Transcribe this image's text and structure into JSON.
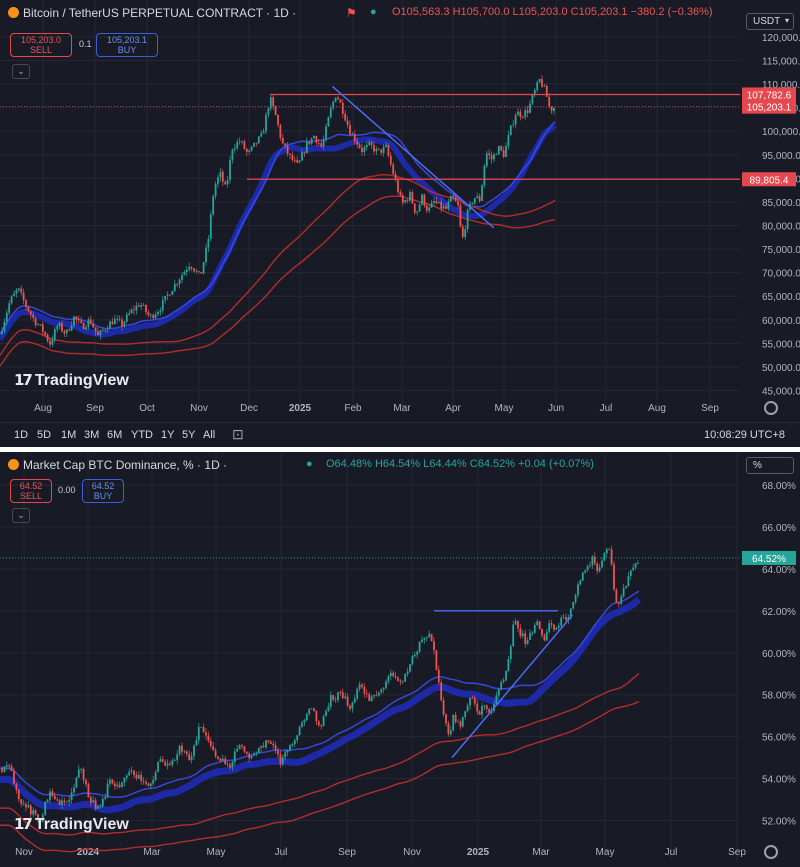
{
  "chart_data": [
    {
      "type": "candlestick",
      "title": "Bitcoin / TetherUS PERPETUAL CONTRACT · 1D ·",
      "ohlc": {
        "open": "O105,563.3",
        "high": "H105,700.0",
        "low": "L105,203.0",
        "close": "C105,203.1",
        "change": "−380.2 (−0.36%)"
      },
      "sell": {
        "value": "105,203.0",
        "label": "SELL"
      },
      "buy": {
        "value": "105,203.1",
        "label": "BUY"
      },
      "spread": "0.1",
      "currency": "USDT",
      "ylim": [
        43000,
        124000
      ],
      "y_ticks": [
        45000,
        50000,
        55000,
        60000,
        65000,
        70000,
        75000,
        80000,
        85000,
        90000,
        95000,
        100000,
        105000,
        110000,
        115000,
        120000
      ],
      "y_tick_labels": [
        "45,000.0",
        "50,000.0",
        "55,000.0",
        "60,000.0",
        "65,000.0",
        "70,000.0",
        "75,000.0",
        "80,000.0",
        "85,000.0",
        "90,000.0",
        "95,000.0",
        "100,000.0",
        "105,000.0",
        "110,000.0",
        "115,000.0",
        "120,000.0"
      ],
      "x_tick_labels": [
        "Aug",
        "Sep",
        "Oct",
        "Nov",
        "Dec",
        "2025",
        "Feb",
        "Mar",
        "Apr",
        "May",
        "Jun",
        "Jul",
        "Aug",
        "Sep"
      ],
      "price_path": [
        [
          0,
          57000
        ],
        [
          10,
          64000
        ],
        [
          18,
          66500
        ],
        [
          26,
          63000
        ],
        [
          34,
          60000
        ],
        [
          42,
          58000
        ],
        [
          50,
          55000
        ],
        [
          58,
          59000
        ],
        [
          66,
          57000
        ],
        [
          74,
          60500
        ],
        [
          82,
          58500
        ],
        [
          90,
          60000
        ],
        [
          98,
          56500
        ],
        [
          106,
          58500
        ],
        [
          114,
          60000
        ],
        [
          122,
          59000
        ],
        [
          130,
          61500
        ],
        [
          140,
          63500
        ],
        [
          150,
          60500
        ],
        [
          160,
          62500
        ],
        [
          170,
          66000
        ],
        [
          180,
          69000
        ],
        [
          190,
          72000
        ],
        [
          200,
          69000
        ],
        [
          208,
          76500
        ],
        [
          214,
          88000
        ],
        [
          220,
          91000
        ],
        [
          226,
          87500
        ],
        [
          232,
          96500
        ],
        [
          240,
          98000
        ],
        [
          248,
          95000
        ],
        [
          256,
          97500
        ],
        [
          262,
          99000
        ],
        [
          270,
          107000
        ],
        [
          276,
          103000
        ],
        [
          282,
          97500
        ],
        [
          290,
          94500
        ],
        [
          298,
          92500
        ],
        [
          306,
          97000
        ],
        [
          314,
          99000
        ],
        [
          322,
          96500
        ],
        [
          330,
          104000
        ],
        [
          336,
          108000
        ],
        [
          342,
          105000
        ],
        [
          350,
          100000
        ],
        [
          356,
          98000
        ],
        [
          362,
          96000
        ],
        [
          370,
          97000
        ],
        [
          378,
          95500
        ],
        [
          386,
          96500
        ],
        [
          394,
          90500
        ],
        [
          402,
          84500
        ],
        [
          410,
          86500
        ],
        [
          416,
          82500
        ],
        [
          422,
          86000
        ],
        [
          428,
          83000
        ],
        [
          434,
          85000
        ],
        [
          440,
          84000
        ],
        [
          446,
          83500
        ],
        [
          452,
          86000
        ],
        [
          458,
          84000
        ],
        [
          462,
          76500
        ],
        [
          468,
          83000
        ],
        [
          474,
          86000
        ],
        [
          480,
          85500
        ],
        [
          486,
          95500
        ],
        [
          492,
          94000
        ],
        [
          498,
          96500
        ],
        [
          504,
          95000
        ],
        [
          510,
          100000
        ],
        [
          516,
          104000
        ],
        [
          522,
          103500
        ],
        [
          528,
          104500
        ],
        [
          534,
          108000
        ],
        [
          540,
          111000
        ],
        [
          546,
          108000
        ],
        [
          550,
          104500
        ],
        [
          555,
          105200
        ]
      ],
      "horizontal_levels": [
        {
          "value": 107782.6,
          "label": "107,782.6"
        },
        {
          "value": 89805.4,
          "label": "89,805.4"
        }
      ],
      "last_price_label": "105,203.1",
      "trendline": {
        "from": [
          "2025-01-20",
          109500
        ],
        "to": [
          "2025-04-25",
          79500
        ]
      },
      "time_ranges": [
        "1D",
        "5D",
        "1M",
        "3M",
        "6M",
        "YTD",
        "1Y",
        "5Y",
        "All"
      ],
      "clock": "10:08:29 UTC+8",
      "watermark": "TradingView"
    },
    {
      "type": "candlestick",
      "title": "Market Cap BTC Dominance, % · 1D ·",
      "ohlc": {
        "open": "O64.48%",
        "high": "H64.54%",
        "low": "L64.44%",
        "close": "C64.52%",
        "change": "+0.04 (+0.07%)"
      },
      "sell": {
        "value": "64.52",
        "label": "SELL"
      },
      "buy": {
        "value": "64.52",
        "label": "BUY"
      },
      "spread": "0.00",
      "currency": "%",
      "ylim": [
        50.5,
        69.0
      ],
      "y_ticks": [
        52,
        54,
        56,
        58,
        60,
        62,
        64,
        66,
        68
      ],
      "y_tick_labels": [
        "52.00%",
        "54.00%",
        "56.00%",
        "58.00%",
        "60.00%",
        "62.00%",
        "64.00%",
        "66.00%",
        "68.00%"
      ],
      "x_tick_labels": [
        "Nov",
        "2024",
        "Mar",
        "May",
        "Jul",
        "Sep",
        "Nov",
        "2025",
        "Mar",
        "May",
        "Jul",
        "Sep"
      ],
      "price_path": [
        [
          10,
          54.5
        ],
        [
          20,
          53.0
        ],
        [
          30,
          52.5
        ],
        [
          40,
          52.0
        ],
        [
          50,
          53.5
        ],
        [
          60,
          52.8
        ],
        [
          70,
          53.0
        ],
        [
          80,
          54.5
        ],
        [
          90,
          53.0
        ],
        [
          100,
          52.5
        ],
        [
          110,
          54.0
        ],
        [
          120,
          53.5
        ],
        [
          130,
          54.5
        ],
        [
          140,
          54.0
        ],
        [
          150,
          53.5
        ],
        [
          160,
          55.0
        ],
        [
          170,
          54.5
        ],
        [
          180,
          55.5
        ],
        [
          190,
          54.8
        ],
        [
          200,
          56.5
        ],
        [
          210,
          55.5
        ],
        [
          220,
          55.0
        ],
        [
          230,
          54.5
        ],
        [
          240,
          55.8
        ],
        [
          250,
          55.0
        ],
        [
          260,
          55.5
        ],
        [
          270,
          55.8
        ],
        [
          280,
          54.8
        ],
        [
          290,
          55.5
        ],
        [
          300,
          56.5
        ],
        [
          310,
          57.5
        ],
        [
          320,
          56.5
        ],
        [
          330,
          57.8
        ],
        [
          340,
          58.0
        ],
        [
          350,
          57.5
        ],
        [
          360,
          58.5
        ],
        [
          370,
          57.8
        ],
        [
          380,
          58.2
        ],
        [
          390,
          59.0
        ],
        [
          400,
          58.5
        ],
        [
          410,
          59.5
        ],
        [
          420,
          60.5
        ],
        [
          430,
          61.0
        ],
        [
          436,
          59.5
        ],
        [
          442,
          57.5
        ],
        [
          448,
          56.0
        ],
        [
          454,
          57.0
        ],
        [
          460,
          56.5
        ],
        [
          466,
          57.5
        ],
        [
          472,
          58.0
        ],
        [
          478,
          57.0
        ],
        [
          484,
          57.5
        ],
        [
          490,
          57.0
        ],
        [
          496,
          58.0
        ],
        [
          502,
          58.5
        ],
        [
          508,
          59.5
        ],
        [
          514,
          61.5
        ],
        [
          520,
          61.0
        ],
        [
          526,
          60.5
        ],
        [
          532,
          61.0
        ],
        [
          538,
          61.5
        ],
        [
          544,
          60.5
        ],
        [
          550,
          61.5
        ],
        [
          556,
          61.0
        ],
        [
          562,
          61.8
        ],
        [
          568,
          61.5
        ],
        [
          574,
          62.5
        ],
        [
          580,
          63.5
        ],
        [
          586,
          64.0
        ],
        [
          592,
          64.5
        ],
        [
          598,
          64.0
        ],
        [
          604,
          64.8
        ],
        [
          610,
          65.0
        ],
        [
          614,
          63.0
        ],
        [
          618,
          62.0
        ],
        [
          622,
          63.0
        ],
        [
          628,
          63.5
        ],
        [
          634,
          64.2
        ],
        [
          640,
          64.52
        ]
      ],
      "horizontal_levels": [
        {
          "value": 62.0
        }
      ],
      "last_price_label": "64.52%",
      "trendline": {
        "from": [
          "2024-12-08",
          55.0
        ],
        "to": [
          "2025-03-31",
          61.8
        ]
      },
      "watermark": "TradingView"
    }
  ]
}
